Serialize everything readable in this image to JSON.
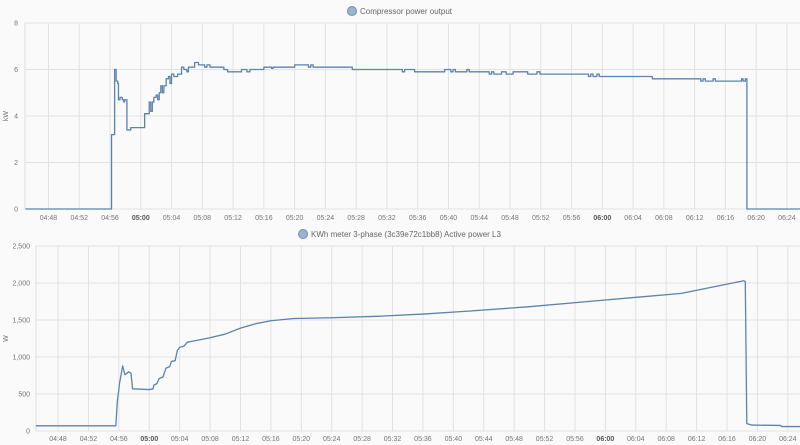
{
  "colors": {
    "line": "#5b83ad",
    "legend_fill": "#9db3cf",
    "legend_stroke": "#6f8fb3",
    "grid": "#e2e2e2"
  },
  "chart_data": [
    {
      "type": "line",
      "step": true,
      "title": "Compressor power output",
      "legend": [
        "Compressor power output"
      ],
      "legend_position": "top-center",
      "ylabel": "kW",
      "xlabel": "",
      "x_unit": "minutes after 04:00",
      "xlim": [
        44.95,
        145.7
      ],
      "ylim": [
        0,
        8
      ],
      "yticks": [
        "0",
        "2",
        "4",
        "6",
        "8"
      ],
      "ytick_values": [
        0,
        2,
        4,
        6,
        8
      ],
      "xticks": [
        "04:48",
        "04:52",
        "04:56",
        "05:00",
        "05:04",
        "05:08",
        "05:12",
        "05:16",
        "05:20",
        "05:24",
        "05:28",
        "05:32",
        "05:36",
        "05:40",
        "05:44",
        "05:48",
        "05:52",
        "05:56",
        "06:00",
        "06:04",
        "06:08",
        "06:12",
        "06:16",
        "06:20",
        "06:24"
      ],
      "grid": true,
      "series": [
        {
          "name": "Compressor power output",
          "points": [
            [
              45,
              0
            ],
            [
              56.2,
              3.2
            ],
            [
              56.6,
              6.0
            ],
            [
              56.8,
              5.5
            ],
            [
              57.0,
              5.4
            ],
            [
              57.1,
              4.7
            ],
            [
              57.3,
              4.8
            ],
            [
              57.6,
              4.7
            ],
            [
              57.8,
              4.6
            ],
            [
              57.9,
              4.7
            ],
            [
              58.2,
              3.4
            ],
            [
              58.7,
              3.5
            ],
            [
              60.5,
              4.1
            ],
            [
              61.1,
              4.6
            ],
            [
              61.3,
              4.2
            ],
            [
              61.5,
              4.6
            ],
            [
              61.7,
              4.8
            ],
            [
              62.0,
              4.9
            ],
            [
              62.2,
              4.7
            ],
            [
              62.4,
              5.0
            ],
            [
              62.6,
              5.3
            ],
            [
              62.8,
              5.0
            ],
            [
              63.0,
              5.3
            ],
            [
              63.3,
              5.6
            ],
            [
              63.6,
              5.7
            ],
            [
              63.8,
              5.4
            ],
            [
              64.0,
              5.8
            ],
            [
              64.3,
              5.7
            ],
            [
              64.8,
              5.8
            ],
            [
              65.3,
              6.1
            ],
            [
              65.6,
              6.0
            ],
            [
              66.0,
              5.9
            ],
            [
              66.2,
              6.1
            ],
            [
              67.0,
              6.3
            ],
            [
              67.5,
              6.2
            ],
            [
              68.3,
              6.1
            ],
            [
              68.6,
              6.2
            ],
            [
              69.0,
              6.1
            ],
            [
              70.8,
              6.0
            ],
            [
              71.3,
              5.9
            ],
            [
              73.1,
              6.0
            ],
            [
              73.8,
              5.9
            ],
            [
              74.2,
              6.0
            ],
            [
              76.0,
              6.1
            ],
            [
              77.0,
              6.05
            ],
            [
              77.2,
              6.1
            ],
            [
              80.0,
              6.2
            ],
            [
              81.8,
              6.1
            ],
            [
              82.1,
              6.2
            ],
            [
              82.4,
              6.1
            ],
            [
              87.5,
              6.0
            ],
            [
              94.0,
              5.9
            ],
            [
              94.3,
              6.0
            ],
            [
              95.6,
              5.9
            ],
            [
              99.5,
              6.0
            ],
            [
              100.3,
              5.9
            ],
            [
              100.6,
              6.0
            ],
            [
              100.9,
              5.9
            ],
            [
              102.4,
              6.0
            ],
            [
              102.7,
              5.9
            ],
            [
              105.3,
              5.8
            ],
            [
              105.6,
              5.9
            ],
            [
              105.9,
              5.8
            ],
            [
              106.9,
              5.9
            ],
            [
              107.5,
              5.8
            ],
            [
              108.4,
              5.9
            ],
            [
              110.3,
              5.8
            ],
            [
              111.5,
              5.9
            ],
            [
              111.9,
              5.8
            ],
            [
              118.2,
              5.7
            ],
            [
              118.5,
              5.8
            ],
            [
              118.8,
              5.7
            ],
            [
              119.3,
              5.8
            ],
            [
              119.6,
              5.7
            ],
            [
              126.5,
              5.6
            ],
            [
              132.8,
              5.5
            ],
            [
              133.1,
              5.6
            ],
            [
              133.4,
              5.5
            ],
            [
              134.4,
              5.6
            ],
            [
              134.7,
              5.5
            ],
            [
              138.1,
              5.6
            ],
            [
              138.3,
              5.5
            ],
            [
              138.6,
              5.6
            ],
            [
              138.8,
              0
            ],
            [
              145.7,
              0
            ]
          ]
        }
      ]
    },
    {
      "type": "line",
      "step": false,
      "title": "KWh meter 3-phase (3c39e72c1bb8) Active power L3",
      "legend": [
        "KWh meter 3-phase (3c39e72c1bb8) Active power L3"
      ],
      "legend_position": "top-center",
      "ylabel": "W",
      "xlabel": "",
      "x_unit": "minutes after 04:00",
      "xlim": [
        45.1,
        145.6
      ],
      "ylim": [
        0,
        2500
      ],
      "yticks": [
        "0",
        "500",
        "1,000",
        "1,500",
        "2,000",
        "2,500"
      ],
      "ytick_values": [
        0,
        500,
        1000,
        1500,
        2000,
        2500
      ],
      "xticks": [
        "04:48",
        "04:52",
        "04:56",
        "05:00",
        "05:04",
        "05:08",
        "05:12",
        "05:16",
        "05:20",
        "05:24",
        "05:28",
        "05:32",
        "05:36",
        "05:40",
        "05:44",
        "05:48",
        "05:52",
        "05:56",
        "06:00",
        "06:04",
        "06:08",
        "06:12",
        "06:16",
        "06:20",
        "06:24"
      ],
      "grid": true,
      "series": [
        {
          "name": "KWh meter 3-phase (3c39e72c1bb8) Active power L3",
          "points": [
            [
              45.1,
              70
            ],
            [
              55.6,
              70
            ],
            [
              55.8,
              400
            ],
            [
              56.1,
              650
            ],
            [
              56.5,
              880
            ],
            [
              56.8,
              760
            ],
            [
              57.3,
              800
            ],
            [
              57.6,
              780
            ],
            [
              57.8,
              570
            ],
            [
              60.0,
              560
            ],
            [
              60.5,
              570
            ],
            [
              60.6,
              620
            ],
            [
              61.0,
              640
            ],
            [
              61.3,
              710
            ],
            [
              61.8,
              730
            ],
            [
              62.2,
              850
            ],
            [
              62.7,
              870
            ],
            [
              62.9,
              940
            ],
            [
              63.4,
              950
            ],
            [
              63.7,
              1090
            ],
            [
              64.0,
              1130
            ],
            [
              64.6,
              1150
            ],
            [
              65.0,
              1200
            ],
            [
              65.5,
              1210
            ],
            [
              68,
              1260
            ],
            [
              70,
              1310
            ],
            [
              72,
              1390
            ],
            [
              74,
              1450
            ],
            [
              76,
              1490
            ],
            [
              79,
              1520
            ],
            [
              84,
              1530
            ],
            [
              90,
              1550
            ],
            [
              96,
              1580
            ],
            [
              102,
              1620
            ],
            [
              110,
              1680
            ],
            [
              120,
              1770
            ],
            [
              130,
              1860
            ],
            [
              138.2,
              2030
            ],
            [
              138.4,
              2020
            ],
            [
              138.6,
              100
            ],
            [
              139.3,
              80
            ],
            [
              143,
              75
            ],
            [
              143.2,
              60
            ],
            [
              145.6,
              60
            ]
          ]
        }
      ]
    }
  ]
}
